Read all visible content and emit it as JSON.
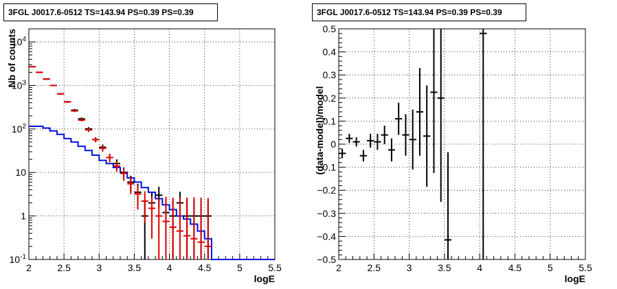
{
  "colors": {
    "data": "#000000",
    "model_total": "#e00000",
    "model_source": "#0010e0",
    "grid": "#000000"
  },
  "chart_data": [
    {
      "type": "line",
      "title": "3FGL J0017.6-0512 TS=143.94 PS=0.39 PS=0.39",
      "xlabel": "logE",
      "ylabel": "Nb of counts",
      "xlim": [
        2,
        5.5
      ],
      "ylim": [
        0.1,
        20000
      ],
      "log_y": true,
      "grid": true,
      "x_ticks": [
        "2",
        "2.5",
        "3",
        "3.5",
        "4",
        "4.5",
        "5",
        "5.5"
      ],
      "y_ticks": [
        "10^-1",
        "1",
        "10",
        "10^2",
        "10^3",
        "10^4"
      ],
      "bin_edges": [
        2.0,
        2.1,
        2.2,
        2.3,
        2.4,
        2.5,
        2.6,
        2.7,
        2.8,
        2.9,
        3.0,
        3.1,
        3.2,
        3.3,
        3.4,
        3.5,
        3.6,
        3.7,
        3.8,
        3.9,
        4.0,
        4.1,
        4.2,
        4.3,
        4.4,
        4.5,
        4.6,
        4.7,
        4.8,
        4.9,
        5.0,
        5.1,
        5.2,
        5.3,
        5.4,
        5.5
      ],
      "series": [
        {
          "type": "errorbar",
          "x": [
            2.05,
            2.15,
            2.25,
            2.35,
            2.45,
            2.55,
            2.65,
            2.75,
            2.85,
            2.95,
            3.05,
            3.15,
            3.25,
            3.35,
            3.45,
            3.55,
            3.65,
            3.75,
            3.85,
            3.95,
            4.05,
            4.15,
            4.25,
            4.35,
            4.45,
            4.55
          ],
          "values": [
            2700,
            2000,
            1400,
            1000,
            640,
            420,
            270,
            170,
            100,
            57,
            38,
            22,
            16,
            10,
            6,
            3.5,
            1,
            2,
            3,
            1.2,
            1,
            2,
            1,
            1,
            1,
            1
          ],
          "err_low": [
            60,
            50,
            40,
            35,
            28,
            22,
            17,
            13,
            10,
            7.5,
            6,
            4.7,
            4,
            3.1,
            2.4,
            2,
            1,
            1,
            1.4,
            1,
            1,
            1.2,
            1,
            1,
            1,
            1
          ],
          "err_high": [
            60,
            50,
            40,
            35,
            28,
            22,
            17,
            13,
            10,
            7.5,
            6,
            4.7,
            4,
            3.1,
            2.4,
            2,
            1.3,
            1.4,
            1.7,
            1.2,
            1.3,
            1.6,
            1.3,
            1.3,
            1.3,
            1.3
          ]
        },
        {
          "type": "errorbar",
          "x": [
            2.05,
            2.15,
            2.25,
            2.35,
            2.45,
            2.55,
            2.65,
            2.75,
            2.85,
            2.95,
            3.05,
            3.15,
            3.25,
            3.35,
            3.45,
            3.55,
            3.65,
            3.75,
            3.85,
            3.95,
            4.05,
            4.15,
            4.25,
            4.35,
            4.45,
            4.55
          ],
          "values": [
            2700,
            2000,
            1400,
            1000,
            640,
            420,
            260,
            160,
            95,
            57,
            36,
            22,
            14,
            9.5,
            5.5,
            3.2,
            2.2,
            1.5,
            1.0,
            0.75,
            0.55,
            0.45,
            0.35,
            0.3,
            0.25,
            0.2
          ],
          "err_low": [
            50,
            45,
            37,
            32,
            25,
            20,
            16,
            12,
            9.5,
            7.5,
            6,
            4.7,
            3.7,
            3.1,
            2.3,
            1.8,
            1.5,
            1.2,
            0.9,
            0.7,
            0.5,
            0.4,
            0.3,
            0.25,
            0.2,
            0.15
          ],
          "err_high": [
            50,
            45,
            37,
            32,
            25,
            20,
            16,
            12,
            9.5,
            7.5,
            6,
            4.7,
            3.7,
            3.1,
            2.3,
            1.8,
            1.5,
            1.3,
            1.5,
            2.0,
            2.1,
            2.2,
            2.3,
            2.4,
            2.4,
            2.4
          ]
        },
        {
          "type": "step",
          "values": [
            115,
            115,
            105,
            90,
            75,
            60,
            50,
            40,
            32,
            25,
            19,
            16,
            13,
            10,
            7.5,
            6,
            4.5,
            3.5,
            2.5,
            1.8,
            1.4,
            1.0,
            0.85,
            0.65,
            0.45,
            0.3,
            0.1,
            0.1,
            0.1,
            0.1,
            0.1,
            0.1,
            0.1,
            0.1,
            0.1
          ]
        }
      ]
    },
    {
      "type": "scatter",
      "title": "3FGL J0017.6-0512 TS=143.94 PS=0.39 PS=0.39",
      "xlabel": "logE",
      "ylabel": "(data-model)/model",
      "xlim": [
        2,
        5.5
      ],
      "ylim": [
        -0.5,
        0.5
      ],
      "grid": true,
      "x_ticks": [
        "2",
        "2.5",
        "3",
        "3.5",
        "4",
        "4.5",
        "5",
        "5.5"
      ],
      "y_ticks": [
        "−0.5",
        "−0.4",
        "−0.3",
        "−0.2",
        "−0.1",
        "0",
        "0.1",
        "0.2",
        "0.3",
        "0.4",
        "0.5"
      ],
      "series": [
        {
          "type": "errorbar",
          "x": [
            2.05,
            2.15,
            2.25,
            2.35,
            2.45,
            2.55,
            2.65,
            2.75,
            2.85,
            2.95,
            3.05,
            3.15,
            3.25,
            3.35,
            3.45,
            3.55,
            4.05
          ],
          "values": [
            -0.04,
            0.025,
            0.01,
            -0.05,
            0.015,
            0.01,
            0.04,
            -0.025,
            0.11,
            0.04,
            0.02,
            0.14,
            0.035,
            0.225,
            0.2,
            -0.415,
            0.48
          ],
          "err": [
            0.02,
            0.02,
            0.02,
            0.025,
            0.03,
            0.035,
            0.04,
            0.05,
            0.07,
            0.09,
            0.13,
            0.19,
            0.22,
            0.35,
            0.45,
            0.38,
            1.0
          ]
        }
      ]
    }
  ]
}
